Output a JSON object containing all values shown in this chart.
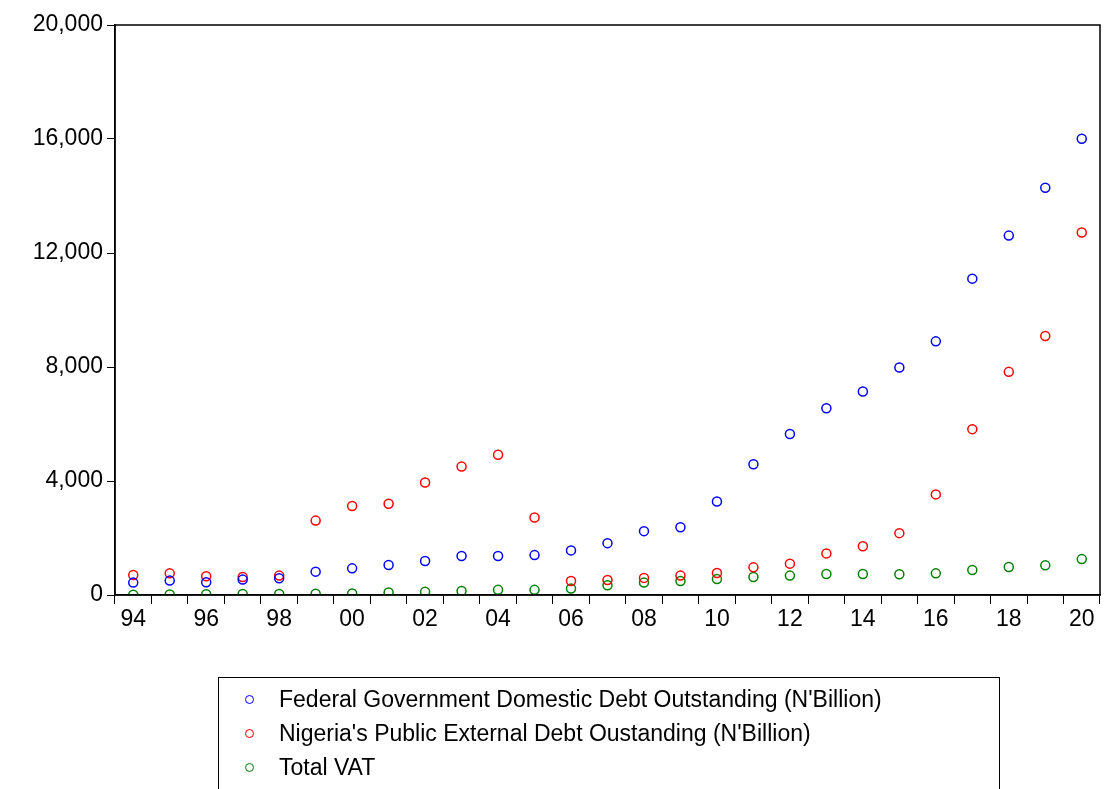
{
  "chart_data": {
    "type": "scatter",
    "categories": [
      "94",
      null,
      "96",
      null,
      "98",
      null,
      "00",
      null,
      "02",
      null,
      "04",
      null,
      "06",
      null,
      "08",
      null,
      "10",
      null,
      "12",
      null,
      "14",
      null,
      "16",
      null,
      "18",
      null,
      "20"
    ],
    "ylim": [
      0,
      20000
    ],
    "yticks": [
      {
        "value": 0,
        "label": "0"
      },
      {
        "value": 4000,
        "label": "4,000"
      },
      {
        "value": 8000,
        "label": "8,000"
      },
      {
        "value": 12000,
        "label": "12,000"
      },
      {
        "value": 16000,
        "label": "16,000"
      },
      {
        "value": 20000,
        "label": "20,000"
      }
    ],
    "grid": false,
    "legend": "bottom",
    "marker": "circle",
    "series": [
      {
        "name": "Federal Government Domestic Debt Outstanding (N'Billion)",
        "color": "#0000ff",
        "values": [
          435,
          505,
          445,
          540,
          585,
          820,
          935,
          1050,
          1190,
          1370,
          1370,
          1400,
          1565,
          1820,
          2240,
          2380,
          3280,
          4590,
          5650,
          6550,
          7140,
          7980,
          8900,
          11100,
          12610,
          14290,
          16010
        ]
      },
      {
        "name": "Nigeria's Public External Debt Oustanding (N'Billion)",
        "color": "#ff0000",
        "values": [
          700,
          760,
          655,
          630,
          680,
          2610,
          3120,
          3200,
          3950,
          4510,
          4920,
          2720,
          490,
          525,
          600,
          680,
          770,
          970,
          1100,
          1460,
          1710,
          2170,
          3530,
          5820,
          7830,
          9090,
          12720
        ]
      },
      {
        "name": "Total VAT",
        "color": "#008000",
        "values": [
          10,
          20,
          30,
          35,
          35,
          45,
          55,
          90,
          110,
          140,
          180,
          180,
          230,
          340,
          435,
          490,
          560,
          630,
          680,
          735,
          735,
          730,
          760,
          875,
          980,
          1040,
          1260
        ]
      }
    ]
  }
}
